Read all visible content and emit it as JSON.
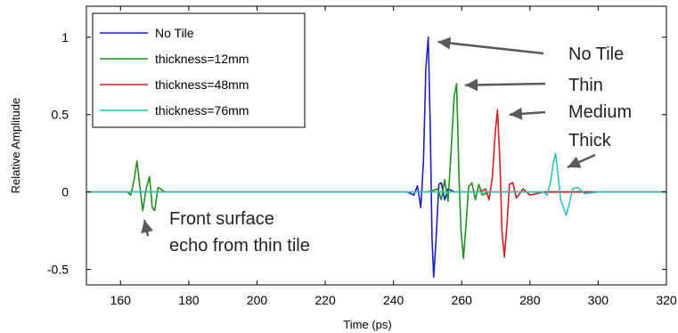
{
  "chart_data": {
    "type": "line",
    "title": "",
    "xlabel": "Time (ps)",
    "ylabel": "Relative Amplitude",
    "xlim": [
      150,
      320
    ],
    "ylim": [
      -0.6,
      1.2
    ],
    "xticks": [
      160,
      180,
      200,
      220,
      240,
      260,
      280,
      300,
      320
    ],
    "yticks": [
      -0.5,
      0,
      0.5,
      1
    ],
    "ytick_labels": [
      "-0.5",
      "0",
      "0.5",
      "1"
    ],
    "grid": false,
    "legend_position": "top-left",
    "series": [
      {
        "name": "No Tile",
        "color": "#1f1fbf",
        "x": [
          150,
          244,
          246,
          247,
          248,
          248.8,
          249.5,
          250.2,
          250.8,
          251.3,
          251.8,
          252.5,
          253.3,
          254,
          255,
          256,
          258,
          262,
          320
        ],
        "y": [
          0,
          0,
          -0.02,
          0.04,
          -0.1,
          0.2,
          0.8,
          1.0,
          0.4,
          -0.3,
          -0.55,
          -0.3,
          0.05,
          0.06,
          -0.05,
          0.02,
          0,
          0,
          0
        ]
      },
      {
        "name": "thickness=12mm",
        "color": "#1f8f1f",
        "x": [
          150,
          162,
          163,
          164,
          164.8,
          165.6,
          166.5,
          167.5,
          168.5,
          169.3,
          170,
          171,
          173,
          250,
          253,
          254,
          255,
          256,
          257,
          257.8,
          258.5,
          259.2,
          259.8,
          260.5,
          261.3,
          262,
          263,
          264,
          265,
          266,
          268,
          320
        ],
        "y": [
          0,
          0,
          -0.02,
          0.08,
          0.2,
          0.05,
          -0.12,
          0.02,
          0.1,
          -0.1,
          -0.12,
          0.03,
          0,
          0,
          0.02,
          -0.05,
          0.08,
          -0.06,
          0.3,
          0.62,
          0.7,
          0.1,
          -0.25,
          -0.43,
          -0.2,
          0.03,
          0.06,
          -0.05,
          0.05,
          -0.02,
          0,
          0
        ]
      },
      {
        "name": "thickness=48mm",
        "color": "#cf1f1f",
        "x": [
          150,
          265,
          267,
          268,
          269,
          269.8,
          270.5,
          271.2,
          271.8,
          272.5,
          273.3,
          274,
          275,
          276,
          278,
          280,
          284,
          320
        ],
        "y": [
          0,
          0,
          0.02,
          -0.05,
          0.1,
          0.38,
          0.53,
          0.2,
          -0.25,
          -0.42,
          -0.2,
          0.05,
          0.06,
          -0.04,
          0.02,
          -0.02,
          0,
          0
        ]
      },
      {
        "name": "thickness=76mm",
        "color": "#2fbfbf",
        "x": [
          150,
          284,
          285,
          286,
          286.8,
          287.5,
          288.2,
          289,
          289.8,
          290.6,
          291.5,
          292.5,
          294,
          296,
          300,
          320
        ],
        "y": [
          0,
          0,
          -0.02,
          0.06,
          0.18,
          0.25,
          0.12,
          -0.05,
          -0.1,
          -0.15,
          -0.08,
          0.02,
          0.03,
          -0.01,
          0,
          0
        ]
      }
    ],
    "annotations": [
      {
        "id": "no-tile",
        "text": "No Tile",
        "arrow_tip": [
          253,
          0.97
        ]
      },
      {
        "id": "thin",
        "text": "Thin",
        "arrow_tip": [
          261,
          0.69
        ]
      },
      {
        "id": "medium",
        "text": "Medium",
        "arrow_tip": [
          274,
          0.5
        ]
      },
      {
        "id": "thick",
        "text": "Thick",
        "arrow_tip": [
          291,
          0.16
        ]
      },
      {
        "id": "front-surface-1",
        "text": "Front surface",
        "arrow_tip": [
          167,
          -0.18
        ]
      },
      {
        "id": "front-surface-2",
        "text": "echo from thin tile"
      }
    ]
  }
}
